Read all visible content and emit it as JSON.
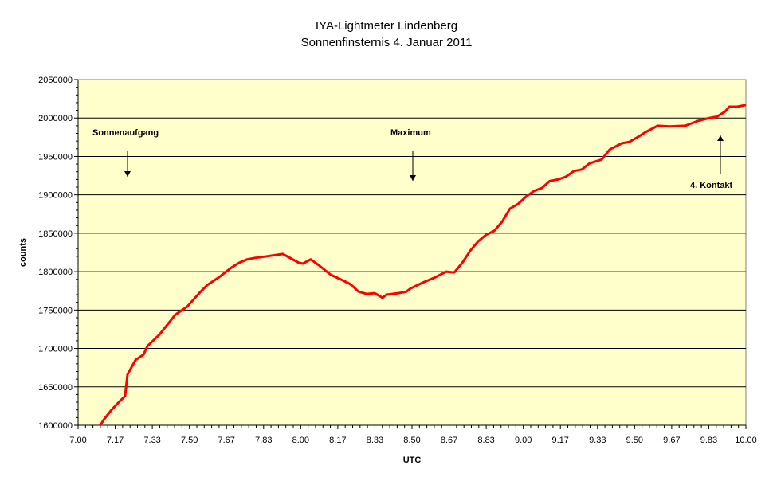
{
  "chart_data": {
    "type": "line",
    "title": [
      "IYA-Lightmeter Lindenberg",
      "Sonnenfinsternis 4. Januar 2011"
    ],
    "xlabel": "UTC",
    "ylabel": "counts",
    "xlim": [
      7.0,
      10.0
    ],
    "ylim": [
      1600000,
      2050000
    ],
    "x_ticks": [
      "7.00",
      "7.17",
      "7.33",
      "7.50",
      "7.67",
      "7.83",
      "8.00",
      "8.17",
      "8.33",
      "8.50",
      "8.67",
      "8.83",
      "9.00",
      "9.17",
      "9.33",
      "9.50",
      "9.67",
      "9.83",
      "10.00"
    ],
    "y_ticks": [
      "1600000",
      "1650000",
      "1700000",
      "1750000",
      "1800000",
      "1850000",
      "1900000",
      "1950000",
      "2000000",
      "2050000"
    ],
    "grid": "horizontal",
    "colors": {
      "line": "#FF0000",
      "plot_bg": "#FFFFCC",
      "grid": "#000000"
    },
    "series": [
      {
        "name": "counts",
        "x": [
          7.1,
          7.115,
          7.15,
          7.186,
          7.211,
          7.222,
          7.258,
          7.294,
          7.311,
          7.365,
          7.401,
          7.437,
          7.49,
          7.544,
          7.58,
          7.634,
          7.687,
          7.723,
          7.759,
          7.795,
          7.848,
          7.92,
          7.945,
          7.992,
          8.01,
          8.045,
          8.081,
          8.135,
          8.189,
          8.224,
          8.26,
          8.296,
          8.332,
          8.368,
          8.385,
          8.439,
          8.475,
          8.493,
          8.547,
          8.6,
          8.654,
          8.69,
          8.726,
          8.761,
          8.797,
          8.833,
          8.869,
          8.905,
          8.94,
          8.976,
          9.012,
          9.048,
          9.084,
          9.119,
          9.155,
          9.191,
          9.227,
          9.263,
          9.298,
          9.352,
          9.388,
          9.442,
          9.477,
          9.513,
          9.549,
          9.603,
          9.656,
          9.728,
          9.782,
          9.835,
          9.871,
          9.907,
          9.925,
          9.961,
          10.0
        ],
        "y": [
          1600000,
          1607000,
          1620000,
          1631000,
          1638000,
          1666000,
          1685000,
          1692000,
          1703000,
          1718000,
          1731000,
          1744000,
          1754500,
          1772000,
          1782500,
          1793000,
          1805000,
          1811500,
          1816000,
          1818000,
          1820000,
          1823000,
          1819000,
          1811500,
          1810500,
          1816000,
          1808400,
          1796000,
          1788700,
          1783500,
          1774000,
          1771000,
          1772000,
          1766000,
          1770000,
          1772000,
          1774000,
          1778000,
          1785600,
          1792000,
          1800000,
          1799000,
          1811500,
          1827000,
          1839500,
          1848000,
          1853000,
          1865000,
          1882000,
          1888000,
          1897600,
          1905000,
          1909000,
          1918000,
          1920000,
          1923500,
          1931000,
          1933000,
          1941000,
          1946000,
          1959000,
          1967000,
          1969000,
          1975000,
          1981600,
          1990000,
          1989000,
          1990000,
          1996000,
          2000000,
          2002000,
          2008500,
          2014700,
          2014700,
          2017000
        ]
      }
    ],
    "annotations": [
      {
        "text": "Sonnenaufgang",
        "arrow": "down",
        "x": 7.22
      },
      {
        "text": "Maximum",
        "arrow": "down",
        "x": 8.5
      },
      {
        "text": "4. Kontakt",
        "arrow": "up",
        "x": 9.89
      }
    ]
  }
}
